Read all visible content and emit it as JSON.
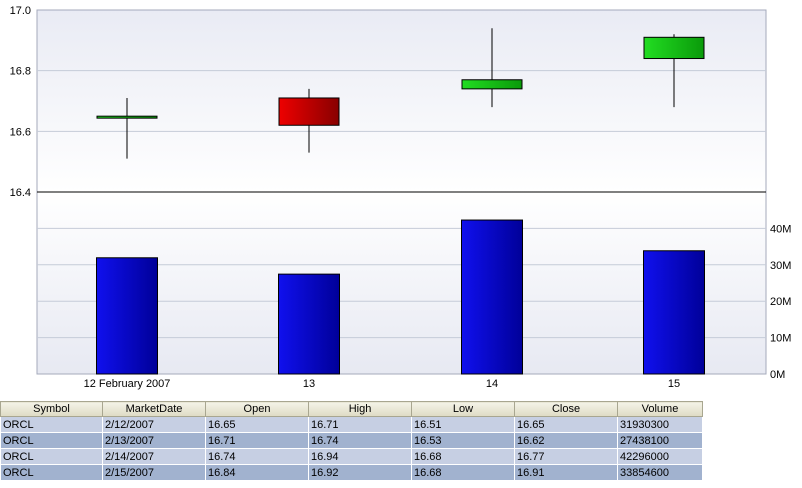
{
  "chart_data": {
    "type": "candlestick",
    "price_axis": {
      "min": 16.4,
      "max": 17.0,
      "ticks": [
        "16.4",
        "16.6",
        "16.8",
        "17.0"
      ]
    },
    "volume_axis": {
      "min": 0,
      "max": 50000000,
      "ticks": [
        "0M",
        "10M",
        "20M",
        "30M",
        "40M"
      ]
    },
    "categories": [
      "12 February 2007",
      "13",
      "14",
      "15"
    ],
    "ohlc": [
      {
        "open": 16.65,
        "high": 16.71,
        "low": 16.51,
        "close": 16.65
      },
      {
        "open": 16.71,
        "high": 16.74,
        "low": 16.53,
        "close": 16.62
      },
      {
        "open": 16.74,
        "high": 16.94,
        "low": 16.68,
        "close": 16.77
      },
      {
        "open": 16.84,
        "high": 16.92,
        "low": 16.68,
        "close": 16.91
      }
    ],
    "volume": [
      31930300,
      27438100,
      42296000,
      33854600
    ],
    "colors": {
      "up": "#22cc22",
      "down": "#cc0000",
      "volume": "#0a0acc",
      "grid": "#c5cbd8"
    }
  },
  "table": {
    "headers": [
      "Symbol",
      "MarketDate",
      "Open",
      "High",
      "Low",
      "Close",
      "Volume"
    ],
    "rows": [
      [
        "ORCL",
        "2/12/2007",
        "16.65",
        "16.71",
        "16.51",
        "16.65",
        "31930300"
      ],
      [
        "ORCL",
        "2/13/2007",
        "16.71",
        "16.74",
        "16.53",
        "16.62",
        "27438100"
      ],
      [
        "ORCL",
        "2/14/2007",
        "16.74",
        "16.94",
        "16.68",
        "16.77",
        "42296000"
      ],
      [
        "ORCL",
        "2/15/2007",
        "16.84",
        "16.92",
        "16.68",
        "16.91",
        "33854600"
      ]
    ]
  }
}
